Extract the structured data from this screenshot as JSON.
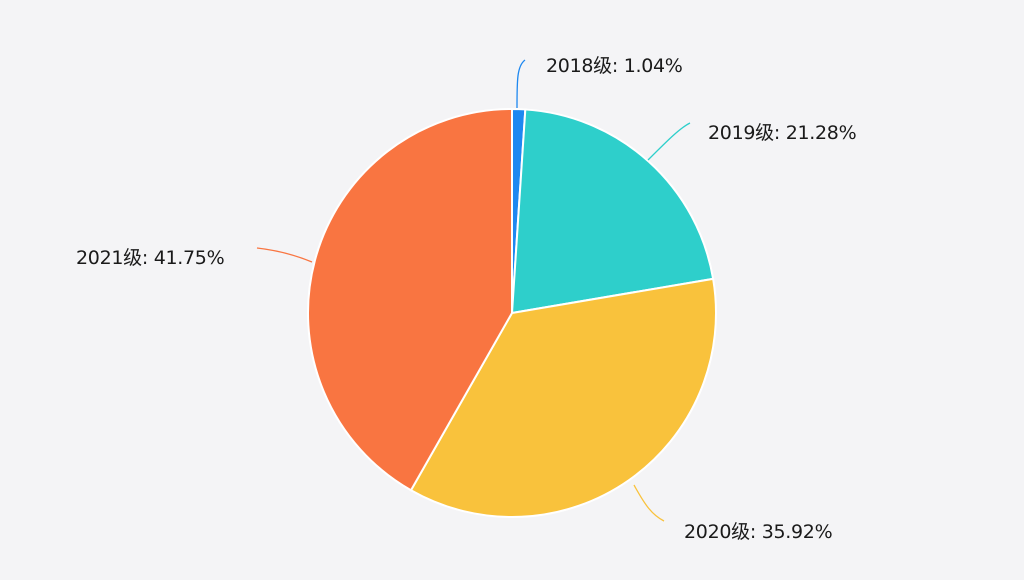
{
  "chart_data": {
    "type": "pie",
    "title": "",
    "categories": [
      "2018级",
      "2019级",
      "2020级",
      "2021级"
    ],
    "values": [
      1.04,
      21.28,
      35.92,
      41.75
    ],
    "unit": "%",
    "colors": [
      "#1e88f0",
      "#2ecfcb",
      "#f9c23c",
      "#f97541"
    ],
    "labels": [
      "2018级: 1.04%",
      "2019级: 21.28%",
      "2020级: 35.92%",
      "2021级: 41.75%"
    ],
    "start_angle_deg": 0,
    "direction": "clockwise",
    "legend": "none"
  },
  "background": "#f4f4f6"
}
